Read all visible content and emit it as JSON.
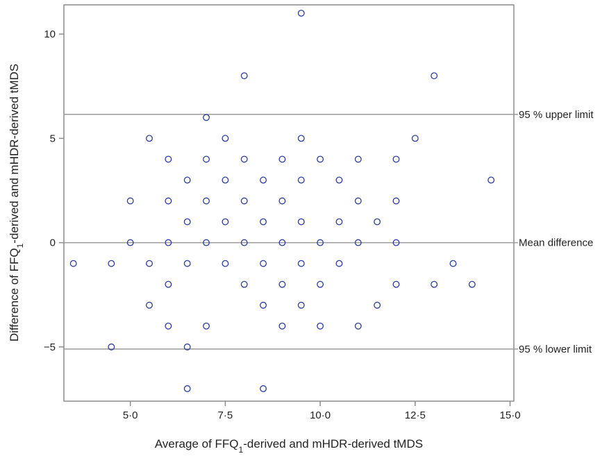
{
  "chart_data": {
    "type": "scatter",
    "title": "",
    "xlabel": {
      "pre": "Average of FFQ",
      "sub": "1",
      "post": "-derived and mHDR-derived tMDS"
    },
    "ylabel": {
      "pre": "Difference of FFQ",
      "sub": "1",
      "post": "-derived and mHDR-derived tMDS"
    },
    "xlim": [
      3.25,
      15.1
    ],
    "ylim": [
      -7.6,
      11.4
    ],
    "xticks": [
      5.0,
      7.5,
      10.0,
      12.5,
      15.0
    ],
    "xtick_labels": [
      "5·0",
      "7·5",
      "10·0",
      "12·5",
      "15·0"
    ],
    "yticks": [
      -5,
      0,
      5,
      10
    ],
    "ytick_labels": [
      "−5",
      "0",
      "5",
      "10"
    ],
    "grid": false,
    "marker_color": "#2a3b9c",
    "line_color": "#9a9a9a",
    "reference_lines": [
      {
        "y": 6.15,
        "label": "95 % upper limit"
      },
      {
        "y": 0.0,
        "label": "Mean difference"
      },
      {
        "y": -5.1,
        "label": "95 % lower limit"
      }
    ],
    "points": [
      [
        9.5,
        11
      ],
      [
        8,
        8
      ],
      [
        13,
        8
      ],
      [
        7,
        6
      ],
      [
        5.5,
        5
      ],
      [
        7.5,
        5
      ],
      [
        9.5,
        5
      ],
      [
        12.5,
        5
      ],
      [
        6,
        4
      ],
      [
        7,
        4
      ],
      [
        8,
        4
      ],
      [
        9,
        4
      ],
      [
        10,
        4
      ],
      [
        11,
        4
      ],
      [
        12,
        4
      ],
      [
        6.5,
        3
      ],
      [
        7.5,
        3
      ],
      [
        8.5,
        3
      ],
      [
        9.5,
        3
      ],
      [
        10.5,
        3
      ],
      [
        14.5,
        3
      ],
      [
        5,
        2
      ],
      [
        6,
        2
      ],
      [
        7,
        2
      ],
      [
        8,
        2
      ],
      [
        9,
        2
      ],
      [
        11,
        2
      ],
      [
        12,
        2
      ],
      [
        6.5,
        1
      ],
      [
        7.5,
        1
      ],
      [
        8.5,
        1
      ],
      [
        9.5,
        1
      ],
      [
        10.5,
        1
      ],
      [
        11.5,
        1
      ],
      [
        5,
        0
      ],
      [
        6,
        0
      ],
      [
        7,
        0
      ],
      [
        8,
        0
      ],
      [
        9,
        0
      ],
      [
        10,
        0
      ],
      [
        11,
        0
      ],
      [
        12,
        0
      ],
      [
        3.5,
        -1
      ],
      [
        4.5,
        -1
      ],
      [
        5.5,
        -1
      ],
      [
        6.5,
        -1
      ],
      [
        7.5,
        -1
      ],
      [
        8.5,
        -1
      ],
      [
        9.5,
        -1
      ],
      [
        10.5,
        -1
      ],
      [
        13.5,
        -1
      ],
      [
        6,
        -2
      ],
      [
        8,
        -2
      ],
      [
        9,
        -2
      ],
      [
        10,
        -2
      ],
      [
        12,
        -2
      ],
      [
        13,
        -2
      ],
      [
        14,
        -2
      ],
      [
        5.5,
        -3
      ],
      [
        8.5,
        -3
      ],
      [
        9.5,
        -3
      ],
      [
        11.5,
        -3
      ],
      [
        6,
        -4
      ],
      [
        7,
        -4
      ],
      [
        9,
        -4
      ],
      [
        10,
        -4
      ],
      [
        11,
        -4
      ],
      [
        4.5,
        -5
      ],
      [
        6.5,
        -5
      ],
      [
        6.5,
        -7
      ],
      [
        8.5,
        -7
      ]
    ]
  }
}
